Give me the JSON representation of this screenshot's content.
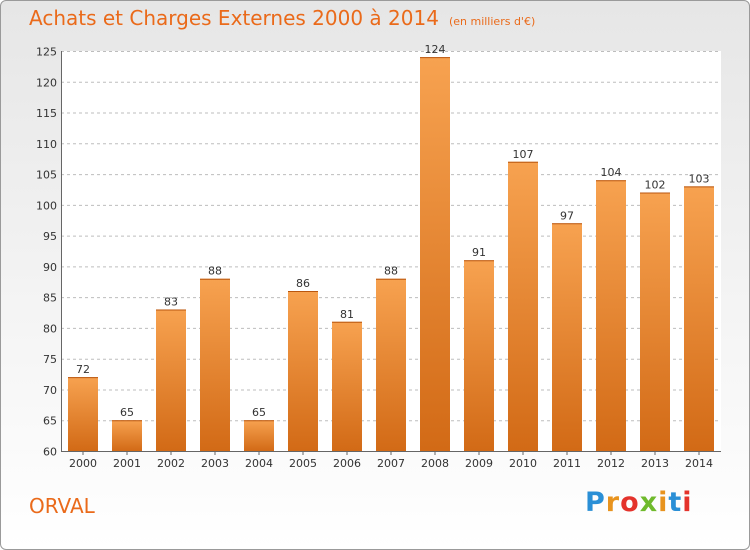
{
  "title": "Achats et Charges Externes 2000 à 2014",
  "unit": "(en milliers d'€)",
  "place": "ORVAL",
  "logo": {
    "letters": [
      "P",
      "r",
      "o",
      "x",
      "i",
      "t",
      "i"
    ],
    "colors": [
      "#2a8fd6",
      "#e8931e",
      "#e4332c",
      "#6fba2c",
      "#e8931e",
      "#2a8fd6",
      "#e4332c"
    ]
  },
  "colors": {
    "title": "#ea6a1a",
    "bar_light": "#f7a250",
    "bar_dark": "#d26a16",
    "grid": "#bdbdbd"
  },
  "chart_data": {
    "type": "bar",
    "title": "Achats et Charges Externes 2000 à 2014",
    "xlabel": "",
    "ylabel": "",
    "categories": [
      "2000",
      "2001",
      "2002",
      "2003",
      "2004",
      "2005",
      "2006",
      "2007",
      "2008",
      "2009",
      "2010",
      "2011",
      "2012",
      "2013",
      "2014"
    ],
    "values": [
      72,
      65,
      83,
      88,
      65,
      86,
      81,
      88,
      124,
      91,
      107,
      97,
      104,
      102,
      103
    ],
    "ylim": [
      60,
      125
    ],
    "yticks": [
      60,
      65,
      70,
      75,
      80,
      85,
      90,
      95,
      100,
      105,
      110,
      115,
      120,
      125
    ],
    "grid": "horizontal dashed"
  }
}
